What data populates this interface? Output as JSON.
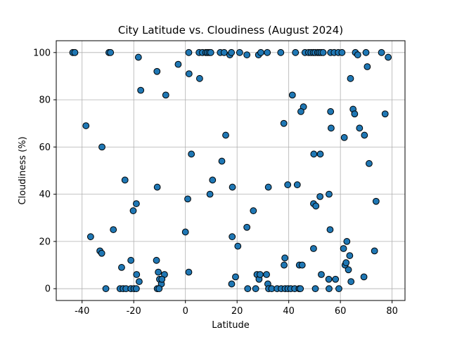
{
  "chart_data": {
    "type": "scatter",
    "title": "City Latitude vs. Cloudiness (August 2024)",
    "xlabel": "Latitude",
    "ylabel": "Cloudiness (%)",
    "xlim": [
      -50,
      85
    ],
    "ylim": [
      -5,
      105
    ],
    "xticks": [
      -40,
      -20,
      0,
      20,
      40,
      60,
      80
    ],
    "yticks": [
      0,
      20,
      40,
      60,
      80,
      100
    ],
    "grid": true,
    "marker_color": "#1f77b4",
    "marker_edge": "#000000",
    "points": [
      [
        -43.6,
        100
      ],
      [
        -42.8,
        100
      ],
      [
        -29.6,
        100
      ],
      [
        -29.0,
        100
      ],
      [
        -18.2,
        98
      ],
      [
        -17.3,
        84
      ],
      [
        -11.0,
        92
      ],
      [
        -7.6,
        82
      ],
      [
        -2.8,
        95
      ],
      [
        1.3,
        100
      ],
      [
        5.3,
        100
      ],
      [
        6.6,
        100
      ],
      [
        7.9,
        100
      ],
      [
        8.5,
        100
      ],
      [
        9.2,
        100
      ],
      [
        9.8,
        100
      ],
      [
        13.5,
        100
      ],
      [
        15.0,
        100
      ],
      [
        17.2,
        99
      ],
      [
        17.8,
        100
      ],
      [
        21.0,
        100
      ],
      [
        23.8,
        99
      ],
      [
        28.3,
        99
      ],
      [
        29.2,
        100
      ],
      [
        31.7,
        100
      ],
      [
        36.9,
        100
      ],
      [
        42.6,
        100
      ],
      [
        46.3,
        100
      ],
      [
        47.7,
        100
      ],
      [
        48.6,
        100
      ],
      [
        49.5,
        100
      ],
      [
        50.2,
        100
      ],
      [
        51.2,
        100
      ],
      [
        51.8,
        100
      ],
      [
        52.5,
        100
      ],
      [
        53.3,
        100
      ],
      [
        56.2,
        100
      ],
      [
        57.6,
        100
      ],
      [
        59.2,
        100
      ],
      [
        60.6,
        100
      ],
      [
        65.8,
        100
      ],
      [
        69.9,
        100
      ],
      [
        75.9,
        100
      ],
      [
        1.4,
        91
      ],
      [
        5.5,
        89
      ],
      [
        70.4,
        94
      ],
      [
        78.5,
        98
      ],
      [
        66.7,
        99
      ],
      [
        63.9,
        89
      ],
      [
        41.4,
        82
      ],
      [
        45.7,
        77
      ],
      [
        44.7,
        75
      ],
      [
        56.2,
        75
      ],
      [
        64.9,
        76
      ],
      [
        65.5,
        74
      ],
      [
        77.3,
        74
      ],
      [
        56.4,
        68
      ],
      [
        67.4,
        68
      ],
      [
        69.3,
        65
      ],
      [
        61.5,
        64
      ],
      [
        38.1,
        70
      ],
      [
        -38.5,
        69
      ],
      [
        -32.3,
        60
      ],
      [
        2.3,
        57
      ],
      [
        49.7,
        57
      ],
      [
        52.2,
        57
      ],
      [
        15.6,
        65
      ],
      [
        14.1,
        54
      ],
      [
        71.1,
        53
      ],
      [
        -23.4,
        46
      ],
      [
        -10.9,
        43
      ],
      [
        10.5,
        46
      ],
      [
        9.5,
        40
      ],
      [
        18.2,
        43
      ],
      [
        32.1,
        43
      ],
      [
        39.6,
        44
      ],
      [
        43.3,
        44
      ],
      [
        55.6,
        40
      ],
      [
        52.1,
        39
      ],
      [
        73.8,
        37
      ],
      [
        -19.0,
        36
      ],
      [
        -20.2,
        33
      ],
      [
        0.9,
        38
      ],
      [
        26.3,
        33
      ],
      [
        49.6,
        36
      ],
      [
        50.5,
        35
      ],
      [
        56.0,
        25
      ],
      [
        -27.9,
        25
      ],
      [
        -36.7,
        22
      ],
      [
        0.0,
        24
      ],
      [
        23.8,
        26
      ],
      [
        18.1,
        22
      ],
      [
        20.3,
        18
      ],
      [
        49.6,
        17
      ],
      [
        61.2,
        17
      ],
      [
        62.5,
        20
      ],
      [
        73.2,
        16
      ],
      [
        -33.1,
        16
      ],
      [
        -32.4,
        15
      ],
      [
        -21.1,
        12
      ],
      [
        -11.2,
        12
      ],
      [
        -24.7,
        9
      ],
      [
        -10.5,
        7
      ],
      [
        1.3,
        7
      ],
      [
        -8.1,
        6
      ],
      [
        -18.9,
        6
      ],
      [
        -17.9,
        3
      ],
      [
        -10.0,
        4
      ],
      [
        -9.3,
        2
      ],
      [
        -10.9,
        0
      ],
      [
        -10.2,
        0
      ],
      [
        -9.1,
        4
      ],
      [
        -30.8,
        0
      ],
      [
        -25.3,
        0
      ],
      [
        -24.1,
        0
      ],
      [
        -23.0,
        0
      ],
      [
        -21.1,
        0
      ],
      [
        -19.9,
        0
      ],
      [
        -19.0,
        0
      ],
      [
        17.9,
        2
      ],
      [
        19.4,
        5
      ],
      [
        24.1,
        0
      ],
      [
        27.2,
        0
      ],
      [
        27.7,
        6
      ],
      [
        28.5,
        4
      ],
      [
        28.9,
        6
      ],
      [
        31.4,
        6
      ],
      [
        31.9,
        2
      ],
      [
        32.2,
        0
      ],
      [
        33.4,
        0
      ],
      [
        35.5,
        0
      ],
      [
        37.1,
        0
      ],
      [
        38.6,
        0
      ],
      [
        39.7,
        0
      ],
      [
        40.8,
        0
      ],
      [
        42.3,
        0
      ],
      [
        44.0,
        0
      ],
      [
        44.5,
        0
      ],
      [
        38.2,
        10
      ],
      [
        38.5,
        13
      ],
      [
        44.1,
        10
      ],
      [
        45.2,
        10
      ],
      [
        50.3,
        0
      ],
      [
        52.6,
        6
      ],
      [
        55.5,
        4
      ],
      [
        55.6,
        0
      ],
      [
        58.1,
        4
      ],
      [
        59.4,
        0
      ],
      [
        61.8,
        10
      ],
      [
        62.2,
        11
      ],
      [
        63.1,
        8
      ],
      [
        63.6,
        14
      ],
      [
        64.1,
        3
      ],
      [
        69.1,
        5
      ]
    ]
  }
}
